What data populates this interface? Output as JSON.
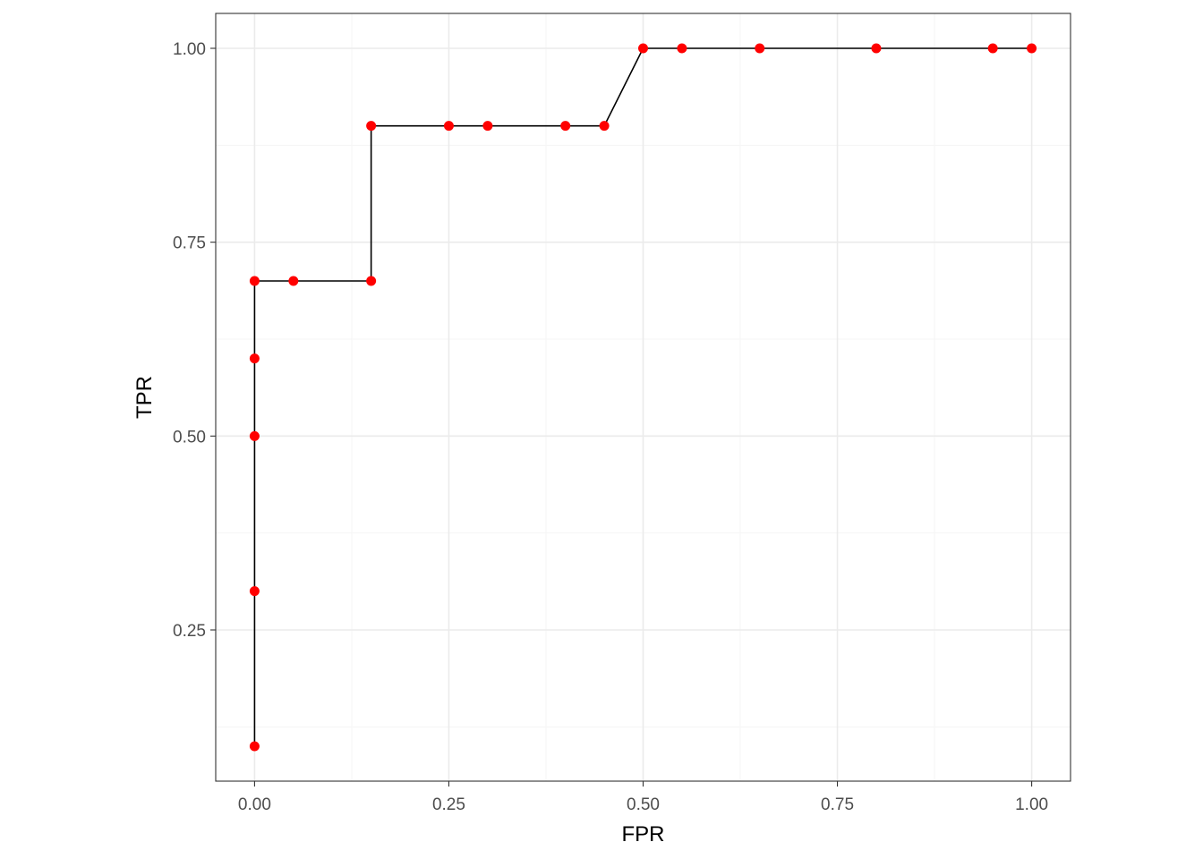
{
  "chart_data": {
    "type": "line",
    "title": "",
    "xlabel": "FPR",
    "ylabel": "TPR",
    "xlim": [
      -0.05,
      1.05
    ],
    "ylim": [
      0.055,
      1.045
    ],
    "x_ticks": [
      0.0,
      0.25,
      0.5,
      0.75,
      1.0
    ],
    "x_tick_labels": [
      "0.00",
      "0.25",
      "0.50",
      "0.75",
      "1.00"
    ],
    "y_ticks": [
      0.25,
      0.5,
      0.75,
      1.0
    ],
    "y_tick_labels": [
      "0.25",
      "0.50",
      "0.75",
      "1.00"
    ],
    "x_minor_ticks": [
      0.125,
      0.375,
      0.625,
      0.875
    ],
    "y_minor_ticks": [
      0.125,
      0.375,
      0.625,
      0.875
    ],
    "grid": true,
    "legend": "none",
    "series": [
      {
        "x": [
          0.0,
          0.0,
          0.0,
          0.0,
          0.0,
          0.05,
          0.15,
          0.15,
          0.25,
          0.3,
          0.4,
          0.45,
          0.5,
          0.55,
          0.65,
          0.8,
          0.95,
          1.0
        ],
        "y": [
          0.1,
          0.3,
          0.5,
          0.6,
          0.7,
          0.7,
          0.7,
          0.9,
          0.9,
          0.9,
          0.9,
          0.9,
          1.0,
          1.0,
          1.0,
          1.0,
          1.0,
          1.0
        ],
        "line_color": "#000000",
        "point_color": "#ff0000"
      }
    ]
  },
  "colors": {
    "background": "#ffffff",
    "panel_border": "#333333",
    "grid_major": "#ebebeb",
    "grid_minor": "#f5f5f5",
    "tick_text": "#4d4d4d",
    "axis_title": "#000000"
  }
}
